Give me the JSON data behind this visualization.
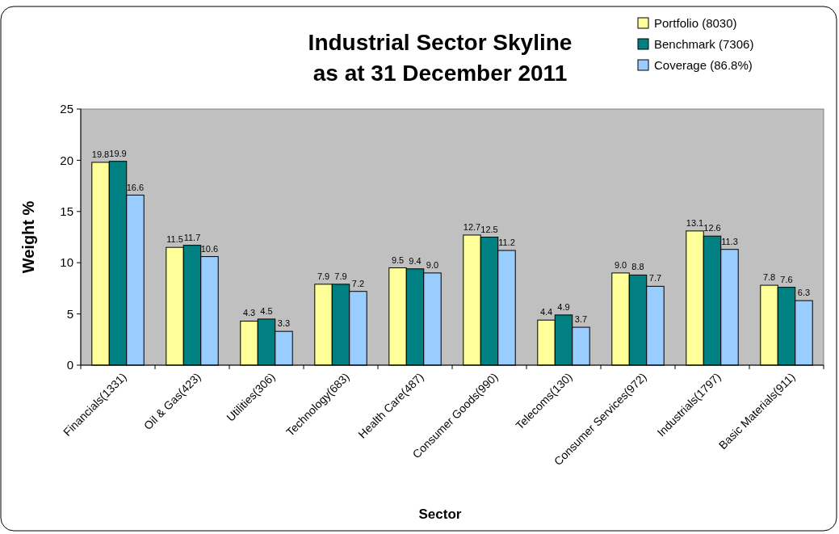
{
  "chart_data": {
    "type": "bar",
    "title": "Industrial Sector Skyline\nas at 31 December 2011",
    "xlabel": "Sector",
    "ylabel": "Weight %",
    "categories": [
      "Financials(1331)",
      "Oil & Gas(423)",
      "Utilities(306)",
      "Technology(683)",
      "Health Care(487)",
      "Consumer Goods(990)",
      "Telecoms(130)",
      "Consumer Services(972)",
      "Industrials(1797)",
      "Basic Materials(911)"
    ],
    "series": [
      {
        "name": "Portfolio (8030)",
        "color": "#ffff99",
        "values": [
          19.8,
          11.5,
          4.3,
          7.9,
          9.5,
          12.7,
          4.4,
          9.0,
          13.1,
          7.8
        ],
        "value_labels": [
          "19.8",
          "11.5",
          "4.3",
          "7.9",
          "9.5",
          "12.7",
          "4.4",
          "9.0",
          "13.1",
          "7.8"
        ]
      },
      {
        "name": "Benchmark (7306)",
        "color": "#008080",
        "values": [
          19.9,
          11.7,
          4.5,
          7.9,
          9.4,
          12.5,
          4.9,
          8.8,
          12.6,
          7.6
        ],
        "value_labels": [
          "19.9",
          "11.7",
          "4.5",
          "7.9",
          "9.4",
          "12.5",
          "4.9",
          "8.8",
          "12.6",
          "7.6"
        ]
      },
      {
        "name": "Coverage (86.8%)",
        "color": "#99ccff",
        "values": [
          16.6,
          10.6,
          3.3,
          7.2,
          9.0,
          11.2,
          3.7,
          7.7,
          11.3,
          6.3
        ],
        "value_labels": [
          "16.6",
          "10.6",
          "3.3",
          "7.2",
          "9.0",
          "11.2",
          "3.7",
          "7.7",
          "11.3",
          "6.3"
        ]
      }
    ],
    "ylim": [
      0,
      25
    ],
    "yticks": [
      0,
      5,
      10,
      15,
      20,
      25
    ],
    "grid": false,
    "legend": "top right"
  }
}
